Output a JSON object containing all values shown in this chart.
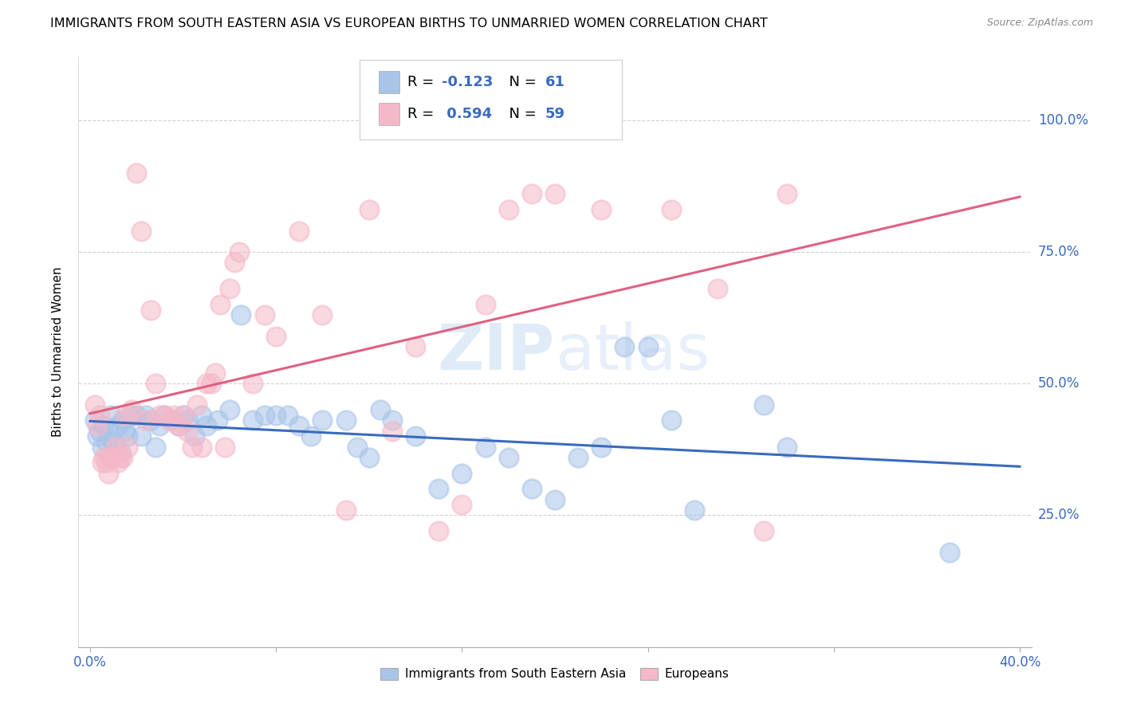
{
  "title": "IMMIGRANTS FROM SOUTH EASTERN ASIA VS EUROPEAN BIRTHS TO UNMARRIED WOMEN CORRELATION CHART",
  "source": "Source: ZipAtlas.com",
  "ylabel": "Births to Unmarried Women",
  "yticks": [
    "25.0%",
    "50.0%",
    "75.0%",
    "100.0%"
  ],
  "ytick_vals": [
    0.25,
    0.5,
    0.75,
    1.0
  ],
  "watermark": "ZIPatlas",
  "blue_color": "#a8c4e8",
  "pink_color": "#f5b8c8",
  "blue_line_color": "#3a6abf",
  "pink_line_color": "#e06080",
  "text_blue": "#3a6abf",
  "background": "#ffffff",
  "grid_color": "#cccccc",
  "blue_scatter": [
    [
      0.002,
      0.43
    ],
    [
      0.003,
      0.4
    ],
    [
      0.004,
      0.41
    ],
    [
      0.005,
      0.38
    ],
    [
      0.006,
      0.42
    ],
    [
      0.007,
      0.39
    ],
    [
      0.008,
      0.41
    ],
    [
      0.009,
      0.44
    ],
    [
      0.01,
      0.39
    ],
    [
      0.011,
      0.38
    ],
    [
      0.012,
      0.42
    ],
    [
      0.013,
      0.37
    ],
    [
      0.014,
      0.43
    ],
    [
      0.015,
      0.41
    ],
    [
      0.016,
      0.4
    ],
    [
      0.018,
      0.44
    ],
    [
      0.02,
      0.44
    ],
    [
      0.022,
      0.4
    ],
    [
      0.024,
      0.44
    ],
    [
      0.026,
      0.43
    ],
    [
      0.028,
      0.38
    ],
    [
      0.03,
      0.42
    ],
    [
      0.032,
      0.44
    ],
    [
      0.035,
      0.43
    ],
    [
      0.038,
      0.42
    ],
    [
      0.04,
      0.44
    ],
    [
      0.042,
      0.43
    ],
    [
      0.045,
      0.4
    ],
    [
      0.048,
      0.44
    ],
    [
      0.05,
      0.42
    ],
    [
      0.055,
      0.43
    ],
    [
      0.06,
      0.45
    ],
    [
      0.065,
      0.63
    ],
    [
      0.07,
      0.43
    ],
    [
      0.075,
      0.44
    ],
    [
      0.08,
      0.44
    ],
    [
      0.085,
      0.44
    ],
    [
      0.09,
      0.42
    ],
    [
      0.095,
      0.4
    ],
    [
      0.1,
      0.43
    ],
    [
      0.11,
      0.43
    ],
    [
      0.115,
      0.38
    ],
    [
      0.12,
      0.36
    ],
    [
      0.125,
      0.45
    ],
    [
      0.13,
      0.43
    ],
    [
      0.14,
      0.4
    ],
    [
      0.15,
      0.3
    ],
    [
      0.16,
      0.33
    ],
    [
      0.17,
      0.38
    ],
    [
      0.18,
      0.36
    ],
    [
      0.19,
      0.3
    ],
    [
      0.2,
      0.28
    ],
    [
      0.21,
      0.36
    ],
    [
      0.22,
      0.38
    ],
    [
      0.23,
      0.57
    ],
    [
      0.24,
      0.57
    ],
    [
      0.25,
      0.43
    ],
    [
      0.26,
      0.26
    ],
    [
      0.29,
      0.46
    ],
    [
      0.3,
      0.38
    ],
    [
      0.37,
      0.18
    ]
  ],
  "pink_scatter": [
    [
      0.002,
      0.46
    ],
    [
      0.003,
      0.42
    ],
    [
      0.004,
      0.44
    ],
    [
      0.005,
      0.35
    ],
    [
      0.006,
      0.36
    ],
    [
      0.007,
      0.35
    ],
    [
      0.008,
      0.33
    ],
    [
      0.009,
      0.36
    ],
    [
      0.01,
      0.36
    ],
    [
      0.011,
      0.38
    ],
    [
      0.012,
      0.35
    ],
    [
      0.013,
      0.36
    ],
    [
      0.014,
      0.36
    ],
    [
      0.015,
      0.44
    ],
    [
      0.016,
      0.38
    ],
    [
      0.018,
      0.45
    ],
    [
      0.02,
      0.9
    ],
    [
      0.022,
      0.79
    ],
    [
      0.024,
      0.43
    ],
    [
      0.026,
      0.64
    ],
    [
      0.028,
      0.5
    ],
    [
      0.03,
      0.44
    ],
    [
      0.032,
      0.44
    ],
    [
      0.034,
      0.43
    ],
    [
      0.036,
      0.44
    ],
    [
      0.038,
      0.42
    ],
    [
      0.04,
      0.44
    ],
    [
      0.042,
      0.41
    ],
    [
      0.044,
      0.38
    ],
    [
      0.046,
      0.46
    ],
    [
      0.048,
      0.38
    ],
    [
      0.05,
      0.5
    ],
    [
      0.052,
      0.5
    ],
    [
      0.054,
      0.52
    ],
    [
      0.056,
      0.65
    ],
    [
      0.058,
      0.38
    ],
    [
      0.06,
      0.68
    ],
    [
      0.062,
      0.73
    ],
    [
      0.064,
      0.75
    ],
    [
      0.07,
      0.5
    ],
    [
      0.075,
      0.63
    ],
    [
      0.08,
      0.59
    ],
    [
      0.09,
      0.79
    ],
    [
      0.1,
      0.63
    ],
    [
      0.11,
      0.26
    ],
    [
      0.12,
      0.83
    ],
    [
      0.13,
      0.41
    ],
    [
      0.14,
      0.57
    ],
    [
      0.15,
      0.22
    ],
    [
      0.16,
      0.27
    ],
    [
      0.17,
      0.65
    ],
    [
      0.18,
      0.83
    ],
    [
      0.19,
      0.86
    ],
    [
      0.2,
      0.86
    ],
    [
      0.22,
      0.83
    ],
    [
      0.25,
      0.83
    ],
    [
      0.27,
      0.68
    ],
    [
      0.29,
      0.22
    ],
    [
      0.3,
      0.86
    ]
  ],
  "blue_R": -0.123,
  "pink_R": 0.594,
  "blue_N": 61,
  "pink_N": 59,
  "xlim": [
    -0.005,
    0.405
  ],
  "ylim": [
    0.0,
    1.12
  ],
  "xtick_only_ends": true,
  "xtick_positions": [
    0.0,
    0.08,
    0.16,
    0.24,
    0.32,
    0.4
  ],
  "num_xtick_minor": 9
}
